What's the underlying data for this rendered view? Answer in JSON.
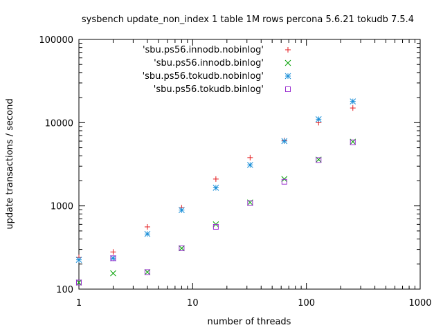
{
  "chart_data": {
    "type": "scatter",
    "title": "sysbench update_non_index 1 table 1M rows percona 5.6.21 tokudb 7.5.4",
    "xlabel": "number of threads",
    "ylabel": "update transactions / second",
    "xscale": "log",
    "yscale": "log",
    "xlim": [
      1,
      1000
    ],
    "ylim": [
      100,
      100000
    ],
    "xticks": [
      1,
      10,
      100,
      1000
    ],
    "yticks": [
      100,
      1000,
      10000,
      100000
    ],
    "xtick_labels": [
      "1",
      "10",
      "100",
      "1000"
    ],
    "ytick_labels": [
      "100",
      "1000",
      "10000",
      "100000"
    ],
    "grid": false,
    "legend_position": "top-center",
    "series": [
      {
        "name": "'sbu.ps56.innodb.nobinlog'",
        "marker": "plus",
        "color": "#e41a1c",
        "x": [
          1,
          2,
          4,
          8,
          16,
          32,
          64,
          128,
          256
        ],
        "y": [
          240,
          280,
          560,
          950,
          2100,
          3800,
          6100,
          10000,
          15000
        ]
      },
      {
        "name": "'sbu.ps56.innodb.binlog'",
        "marker": "x",
        "color": "#00a000",
        "x": [
          1,
          2,
          4,
          8,
          16,
          32,
          64,
          128,
          256
        ],
        "y": [
          120,
          155,
          160,
          310,
          600,
          1100,
          2100,
          3600,
          5900
        ]
      },
      {
        "name": "'sbu.ps56.tokudb.nobinlog'",
        "marker": "star",
        "color": "#1a8fd8",
        "x": [
          1,
          2,
          4,
          8,
          16,
          32,
          64,
          128,
          256
        ],
        "y": [
          225,
          235,
          460,
          890,
          1650,
          3100,
          6000,
          11000,
          18000
        ]
      },
      {
        "name": "'sbu.ps56.tokudb.binlog'",
        "marker": "square",
        "color": "#9b30d0",
        "x": [
          1,
          2,
          4,
          8,
          16,
          32,
          64,
          128,
          256
        ],
        "y": [
          120,
          235,
          160,
          310,
          560,
          1080,
          1950,
          3550,
          5800
        ]
      }
    ]
  }
}
